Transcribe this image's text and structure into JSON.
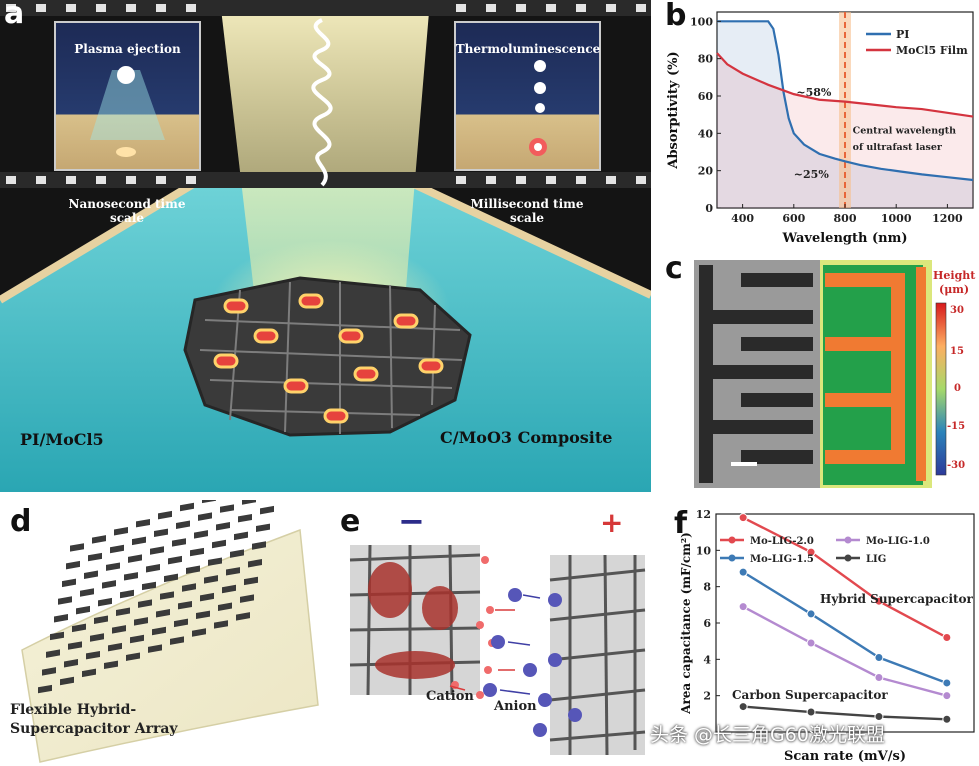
{
  "panel_a": {
    "label": "a",
    "plasma_title": "Plasma ejection",
    "thermo_title": "Thermoluminescence",
    "nano_caption": "Nanosecond time scale",
    "milli_caption": "Millisecond time scale",
    "left_material": "PI/MoCl5",
    "right_material": "C/MoO3 Composite"
  },
  "panel_b": {
    "label": "b"
  },
  "panel_c": {
    "label": "c",
    "colorbar_title_line1": "Height",
    "colorbar_title_line2": "(μm)",
    "colorbar_ticks": [
      "30",
      "15",
      "0",
      "-15",
      "-30"
    ]
  },
  "panel_d": {
    "label": "d",
    "caption_line1": "Flexible Hybrid-",
    "caption_line2": "Supercapacitor Array"
  },
  "panel_e": {
    "label": "e",
    "minus": "−",
    "plus": "+",
    "cation": "Cation",
    "anion": "Anion"
  },
  "panel_f": {
    "label": "f"
  },
  "watermark": "头条 @长三角G60激光联盟",
  "chart_data": [
    {
      "type": "line",
      "id": "b",
      "xlabel": "Wavelength (nm)",
      "ylabel": "Absorptivity (%)",
      "xlim": [
        300,
        1300
      ],
      "ylim": [
        0,
        105
      ],
      "xticks": [
        400,
        600,
        800,
        1000,
        1200
      ],
      "yticks": [
        0,
        20,
        40,
        60,
        80,
        100
      ],
      "series": [
        {
          "name": "PI",
          "color": "#2f6fb0",
          "x": [
            300,
            420,
            500,
            520,
            540,
            560,
            580,
            600,
            640,
            700,
            760,
            800,
            860,
            940,
            1020,
            1100,
            1200,
            1300
          ],
          "y": [
            100,
            100,
            100,
            96,
            82,
            62,
            48,
            40,
            34,
            29,
            26.5,
            25,
            23,
            21,
            19.5,
            18,
            16.5,
            15
          ]
        },
        {
          "name": "MoCl5 Film",
          "color": "#d4343f",
          "x": [
            300,
            340,
            400,
            500,
            600,
            700,
            800,
            900,
            1000,
            1100,
            1200,
            1300
          ],
          "y": [
            83,
            77,
            72,
            66,
            61,
            58,
            57,
            55.5,
            54,
            53,
            51,
            49
          ]
        }
      ],
      "annotations": [
        "~58%",
        "~25%",
        "Central wavelength",
        "of ultrafast laser"
      ],
      "vline": 800
    },
    {
      "type": "line",
      "id": "f",
      "xlabel": "Scan rate (mV/s)",
      "ylabel": "Area capacitance (mF/cm²)",
      "ylim": [
        0,
        12
      ],
      "yticks": [
        0,
        2,
        4,
        6,
        8,
        10,
        12
      ],
      "x": [
        1,
        2,
        3,
        4
      ],
      "series": [
        {
          "name": "Mo-LIG-2.0",
          "color": "#e2494f",
          "values": [
            11.8,
            9.9,
            7.2,
            5.2
          ]
        },
        {
          "name": "Mo-LIG-1.5",
          "color": "#3d7ab5",
          "values": [
            8.8,
            6.5,
            4.1,
            2.7
          ]
        },
        {
          "name": "Mo-LIG-1.0",
          "color": "#b48ad0",
          "values": [
            6.9,
            4.9,
            3.0,
            2.0
          ]
        },
        {
          "name": "LIG",
          "color": "#444444",
          "values": [
            1.4,
            1.1,
            0.85,
            0.7
          ]
        }
      ],
      "annotations": [
        "Hybrid Supercapacitor",
        "Carbon Supercapacitor"
      ]
    }
  ]
}
